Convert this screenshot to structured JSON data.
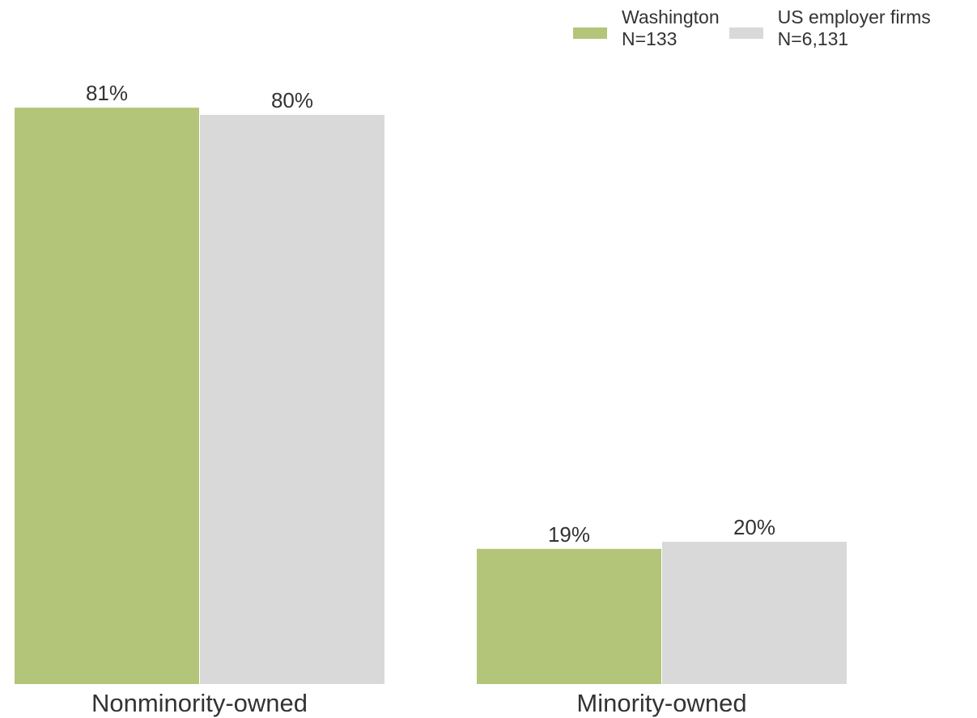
{
  "chart_data": {
    "type": "bar",
    "categories": [
      "Nonminority-owned",
      "Minority-owned"
    ],
    "series": [
      {
        "name": "Washington",
        "sublabel": "N=133",
        "values": [
          81,
          19
        ],
        "labels": [
          "81%",
          "19%"
        ],
        "color": "#b3c578"
      },
      {
        "name": "US employer firms",
        "sublabel": "N=6,131",
        "values": [
          80,
          20
        ],
        "labels": [
          "80%",
          "20%"
        ],
        "color": "#d9d9d9"
      }
    ],
    "ylim": [
      0,
      100
    ],
    "grid": false,
    "legend_position": "top-right"
  }
}
